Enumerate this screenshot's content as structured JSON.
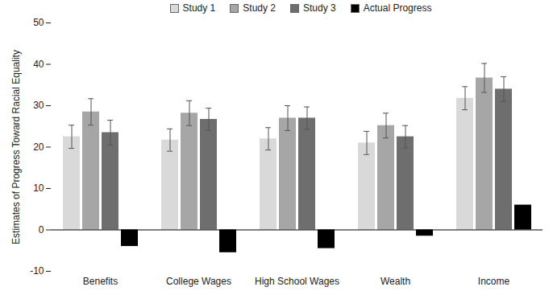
{
  "chart_data": {
    "type": "bar",
    "y_label": "Estimates of Progress Toward Racial Equality",
    "categories": [
      "Benefits",
      "College Wages",
      "High School Wages",
      "Wealth",
      "Income"
    ],
    "series": [
      {
        "name": "Study 1",
        "color": "#d9d9d9",
        "values": [
          22.5,
          21.7,
          22,
          21,
          31.8
        ],
        "errors": [
          2.8,
          2.7,
          2.7,
          2.8,
          2.8
        ]
      },
      {
        "name": "Study 2",
        "color": "#a6a6a6",
        "values": [
          28.5,
          28.2,
          27,
          25.2,
          36.7
        ],
        "errors": [
          3.2,
          3,
          3,
          3,
          3.5
        ]
      },
      {
        "name": "Study 3",
        "color": "#6e6e6e",
        "values": [
          23.5,
          26.7,
          27,
          22.5,
          34
        ],
        "errors": [
          3,
          2.7,
          2.7,
          2.7,
          3
        ]
      },
      {
        "name": "Actual Progress",
        "color": "#000000",
        "values": [
          -4,
          -5.5,
          -4.5,
          -1.5,
          6
        ]
      }
    ],
    "ylim": [
      -10,
      50
    ],
    "yticks": [
      -10,
      0,
      10,
      20,
      30,
      40,
      50
    ],
    "legend": "top",
    "grid": false
  }
}
